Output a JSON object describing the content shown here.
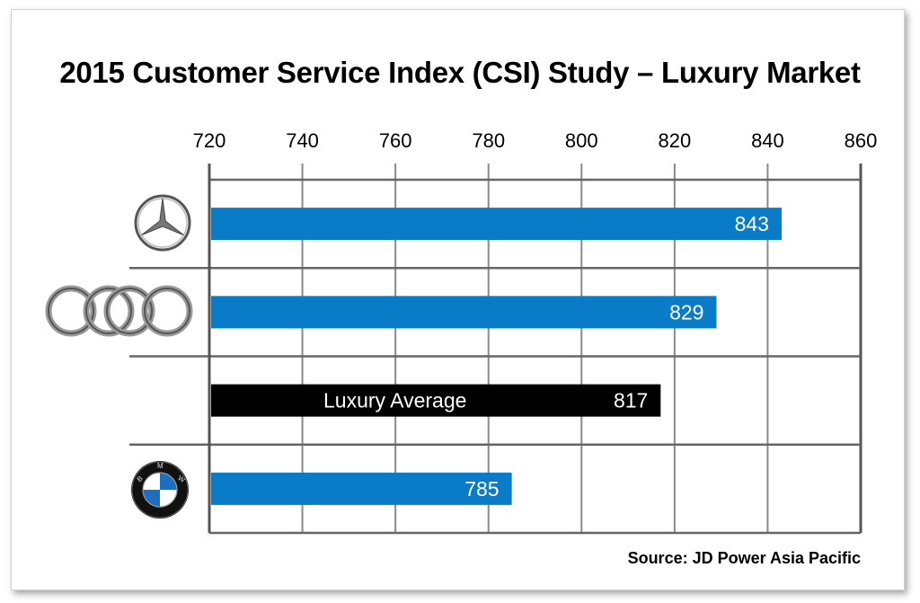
{
  "chart_data": {
    "type": "bar",
    "orientation": "horizontal",
    "title": "2015 Customer Service Index (CSI) Study – Luxury Market",
    "source": "Source: JD Power Asia Pacific",
    "xlim": [
      720,
      860
    ],
    "ticks": [
      720,
      740,
      760,
      780,
      800,
      820,
      840,
      860
    ],
    "tick_labels": [
      "720",
      "740",
      "760",
      "780",
      "800",
      "820",
      "840",
      "860"
    ],
    "grid": true,
    "categories": [
      {
        "brand_icon": "mercedes-logo-icon",
        "value": 843,
        "value_label": "843",
        "label": "",
        "color": "#0a7bc6"
      },
      {
        "brand_icon": "audi-logo-icon",
        "value": 829,
        "value_label": "829",
        "label": "",
        "color": "#0a7bc6"
      },
      {
        "brand_icon": "",
        "value": 817,
        "value_label": "817",
        "label": "Luxury Average",
        "color": "#000000"
      },
      {
        "brand_icon": "bmw-logo-icon",
        "value": 785,
        "value_label": "785",
        "label": "",
        "color": "#0a7bc6"
      }
    ]
  }
}
